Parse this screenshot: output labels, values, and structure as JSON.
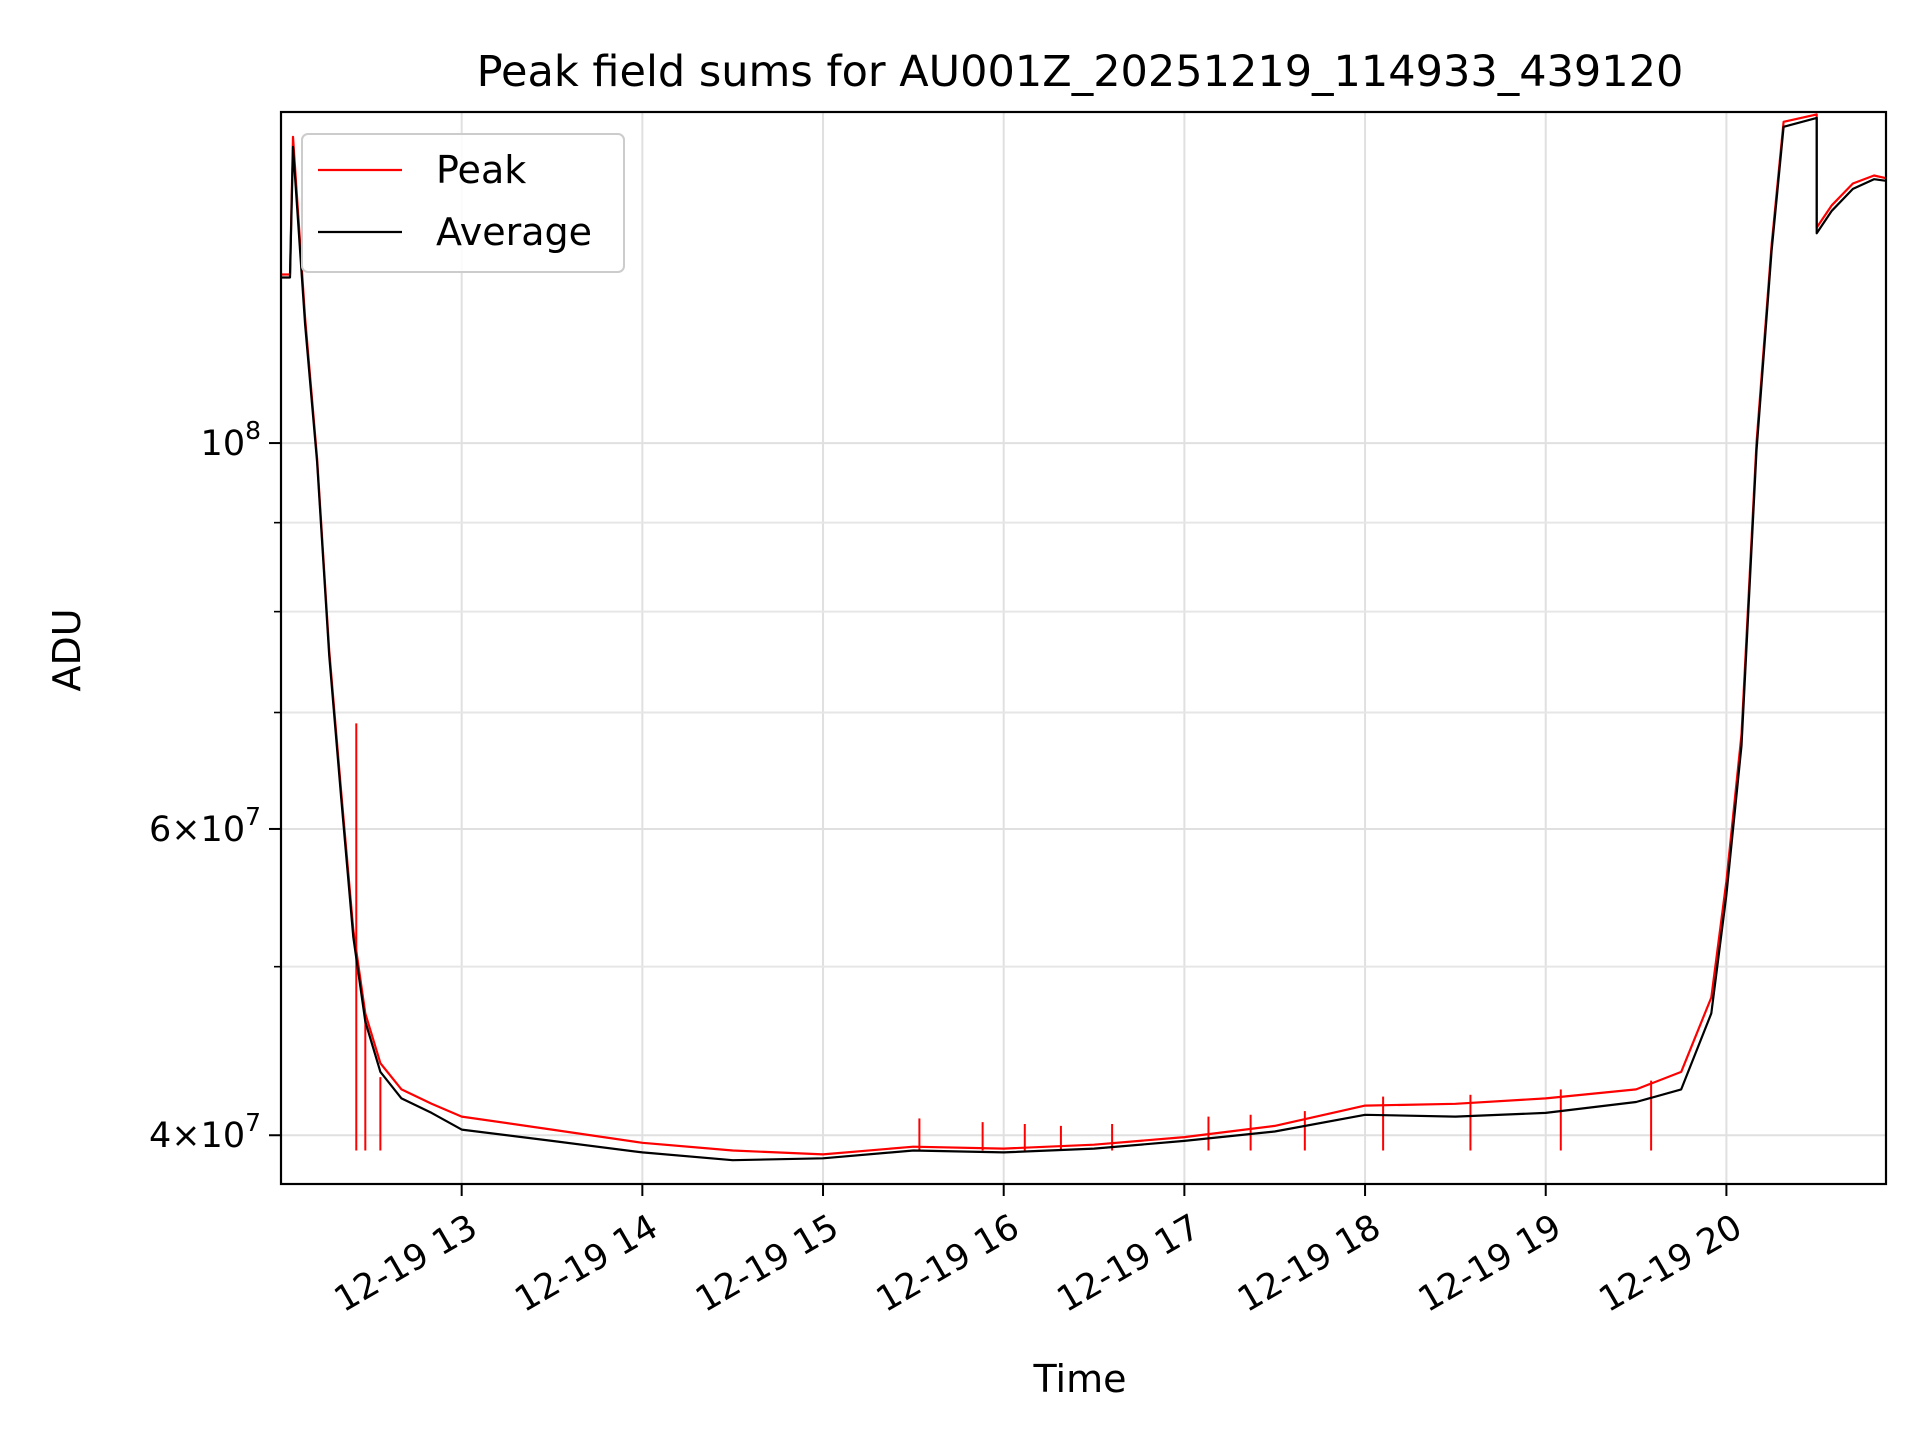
{
  "chart_data": {
    "type": "line",
    "title": "Peak field sums for AU001Z_20251219_114933_439120",
    "xlabel": "Time",
    "ylabel": "ADU",
    "xaxis_type": "datetime",
    "xlim": [
      "2025-12-19 12:00",
      "2025-12-19 20:53"
    ],
    "ylim": [
      37500000,
      155000000
    ],
    "yscale": "log",
    "grid": true,
    "legend_position": "top-left",
    "x_ticks": [
      {
        "value": "2025-12-19 13:00",
        "label": "12-19 13"
      },
      {
        "value": "2025-12-19 14:00",
        "label": "12-19 14"
      },
      {
        "value": "2025-12-19 15:00",
        "label": "12-19 15"
      },
      {
        "value": "2025-12-19 16:00",
        "label": "12-19 16"
      },
      {
        "value": "2025-12-19 17:00",
        "label": "12-19 17"
      },
      {
        "value": "2025-12-19 18:00",
        "label": "12-19 18"
      },
      {
        "value": "2025-12-19 19:00",
        "label": "12-19 19"
      },
      {
        "value": "2025-12-19 20:00",
        "label": "12-19 20"
      }
    ],
    "y_ticks": [
      {
        "value": 40000000,
        "mantissa": "4",
        "exponent": "7"
      },
      {
        "value": 60000000,
        "mantissa": "6",
        "exponent": "7"
      },
      {
        "value": 100000000,
        "mantissa": "",
        "exponent": "8"
      }
    ],
    "y_minor_gridlines": [
      50000000,
      70000000,
      80000000,
      90000000
    ],
    "series": [
      {
        "name": "Peak",
        "color": "#ff0000",
        "points": [
          [
            "2025-12-19 12:00",
            125000000
          ],
          [
            "2025-12-19 12:03",
            125000000
          ],
          [
            "2025-12-19 12:04",
            150000000
          ],
          [
            "2025-12-19 12:08",
            118000000
          ],
          [
            "2025-12-19 12:12",
            98000000
          ],
          [
            "2025-12-19 12:16",
            76000000
          ],
          [
            "2025-12-19 12:20",
            63000000
          ],
          [
            "2025-12-19 12:24",
            52500000
          ],
          [
            "2025-12-19 12:28",
            47000000
          ],
          [
            "2025-12-19 12:33",
            44000000
          ],
          [
            "2025-12-19 12:40",
            42500000
          ],
          [
            "2025-12-19 12:50",
            41700000
          ],
          [
            "2025-12-19 13:00",
            41000000
          ],
          [
            "2025-12-19 13:30",
            40300000
          ],
          [
            "2025-12-19 14:00",
            39600000
          ],
          [
            "2025-12-19 14:30",
            39200000
          ],
          [
            "2025-12-19 15:00",
            39000000
          ],
          [
            "2025-12-19 15:30",
            39400000
          ],
          [
            "2025-12-19 16:00",
            39300000
          ],
          [
            "2025-12-19 16:30",
            39500000
          ],
          [
            "2025-12-19 17:00",
            39900000
          ],
          [
            "2025-12-19 17:30",
            40500000
          ],
          [
            "2025-12-19 18:00",
            41600000
          ],
          [
            "2025-12-19 18:30",
            41700000
          ],
          [
            "2025-12-19 19:00",
            42000000
          ],
          [
            "2025-12-19 19:30",
            42500000
          ],
          [
            "2025-12-19 19:45",
            43500000
          ],
          [
            "2025-12-19 19:55",
            48000000
          ],
          [
            "2025-12-19 20:00",
            56000000
          ],
          [
            "2025-12-19 20:05",
            68000000
          ],
          [
            "2025-12-19 20:10",
            100000000
          ],
          [
            "2025-12-19 20:15",
            130000000
          ],
          [
            "2025-12-19 20:19",
            153000000
          ],
          [
            "2025-12-19 20:30",
            154500000
          ],
          [
            "2025-12-19 20:30",
            133000000
          ],
          [
            "2025-12-19 20:35",
            137000000
          ],
          [
            "2025-12-19 20:42",
            141000000
          ],
          [
            "2025-12-19 20:49",
            142500000
          ],
          [
            "2025-12-19 20:53",
            142000000
          ]
        ],
        "spikes": [
          [
            "2025-12-19 12:25",
            69000000
          ],
          [
            "2025-12-19 12:28",
            46500000
          ],
          [
            "2025-12-19 12:33",
            43200000
          ],
          [
            "2025-12-19 15:32",
            40900000
          ],
          [
            "2025-12-19 15:53",
            40700000
          ],
          [
            "2025-12-19 16:07",
            40600000
          ],
          [
            "2025-12-19 16:19",
            40500000
          ],
          [
            "2025-12-19 16:36",
            40600000
          ],
          [
            "2025-12-19 17:08",
            41000000
          ],
          [
            "2025-12-19 17:22",
            41100000
          ],
          [
            "2025-12-19 17:40",
            41300000
          ],
          [
            "2025-12-19 18:06",
            42100000
          ],
          [
            "2025-12-19 18:35",
            42200000
          ],
          [
            "2025-12-19 19:05",
            42500000
          ],
          [
            "2025-12-19 19:35",
            43000000
          ]
        ]
      },
      {
        "name": "Average",
        "color": "#000000",
        "points": [
          [
            "2025-12-19 12:00",
            124500000
          ],
          [
            "2025-12-19 12:03",
            124500000
          ],
          [
            "2025-12-19 12:04",
            148000000
          ],
          [
            "2025-12-19 12:08",
            117000000
          ],
          [
            "2025-12-19 12:12",
            97500000
          ],
          [
            "2025-12-19 12:16",
            75500000
          ],
          [
            "2025-12-19 12:20",
            62500000
          ],
          [
            "2025-12-19 12:24",
            52000000
          ],
          [
            "2025-12-19 12:28",
            46500000
          ],
          [
            "2025-12-19 12:33",
            43500000
          ],
          [
            "2025-12-19 12:40",
            42000000
          ],
          [
            "2025-12-19 12:50",
            41200000
          ],
          [
            "2025-12-19 13:00",
            40300000
          ],
          [
            "2025-12-19 13:30",
            39700000
          ],
          [
            "2025-12-19 14:00",
            39100000
          ],
          [
            "2025-12-19 14:30",
            38700000
          ],
          [
            "2025-12-19 15:00",
            38800000
          ],
          [
            "2025-12-19 15:30",
            39200000
          ],
          [
            "2025-12-19 16:00",
            39100000
          ],
          [
            "2025-12-19 16:30",
            39300000
          ],
          [
            "2025-12-19 17:00",
            39700000
          ],
          [
            "2025-12-19 17:30",
            40200000
          ],
          [
            "2025-12-19 18:00",
            41100000
          ],
          [
            "2025-12-19 18:30",
            41000000
          ],
          [
            "2025-12-19 19:00",
            41200000
          ],
          [
            "2025-12-19 19:30",
            41800000
          ],
          [
            "2025-12-19 19:45",
            42500000
          ],
          [
            "2025-12-19 19:55",
            47000000
          ],
          [
            "2025-12-19 20:00",
            55000000
          ],
          [
            "2025-12-19 20:05",
            67000000
          ],
          [
            "2025-12-19 20:10",
            99000000
          ],
          [
            "2025-12-19 20:15",
            129000000
          ],
          [
            "2025-12-19 20:19",
            152000000
          ],
          [
            "2025-12-19 20:30",
            153800000
          ],
          [
            "2025-12-19 20:30",
            132000000
          ],
          [
            "2025-12-19 20:35",
            136000000
          ],
          [
            "2025-12-19 20:42",
            140000000
          ],
          [
            "2025-12-19 20:49",
            141800000
          ],
          [
            "2025-12-19 20:53",
            141500000
          ]
        ]
      }
    ]
  }
}
